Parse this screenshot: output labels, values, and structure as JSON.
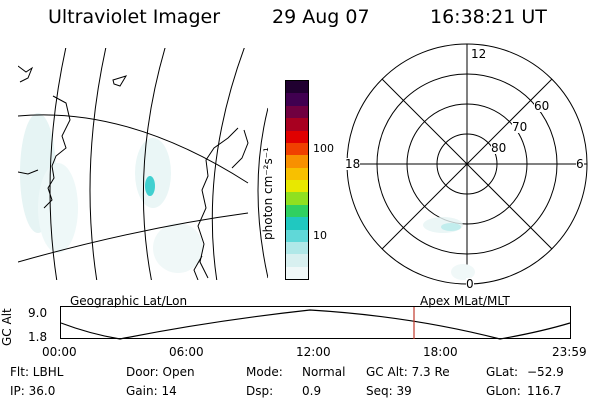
{
  "header": {
    "instrument": "Ultraviolet Imager",
    "date": "29 Aug 07",
    "time": "16:38:21 UT"
  },
  "colorbar": {
    "unit_label": "photon cm⁻²s⁻¹",
    "ticks": [
      "100",
      "10"
    ],
    "colors": [
      "#f0f8f8",
      "#d8f0f0",
      "#b0e8e8",
      "#60d8d8",
      "#20c8c0",
      "#30d060",
      "#90e020",
      "#e8e800",
      "#f8c000",
      "#f89000",
      "#f04000",
      "#e00000",
      "#a80020",
      "#700040",
      "#400050",
      "#200030"
    ]
  },
  "polar_plot": {
    "mlt_labels": [
      "12",
      "18",
      "6",
      "0"
    ],
    "lat_labels": [
      "60",
      "70",
      "80"
    ]
  },
  "timeline": {
    "left_label": "Geographic Lat/Lon",
    "right_label": "Apex MLat/MLT",
    "y_axis_title": "GC Alt",
    "y_ticks": [
      "9.0",
      "1.8"
    ],
    "x_ticks": [
      "00:00",
      "06:00",
      "12:00",
      "18:00",
      "23:59"
    ],
    "marker_color": "#c0392b"
  },
  "info": {
    "filter": "Flt: LBHL",
    "door": "Door: Open",
    "mode_label": "Mode:",
    "mode_value": "Normal",
    "gc_alt": "GC Alt: 7.3 Re",
    "glat_label": "GLat:",
    "glat_value": "−52.9",
    "ip": "IP: 36.0",
    "gain": "Gain: 14",
    "dsp_label": "Dsp:",
    "dsp_value": "0.9",
    "seq": "Seq: 39",
    "glon_label": "GLon:",
    "glon_value": "116.7"
  }
}
